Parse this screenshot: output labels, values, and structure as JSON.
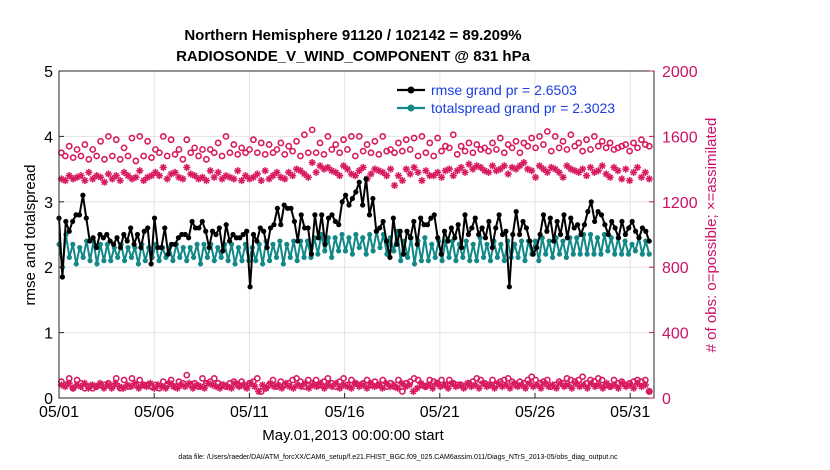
{
  "chart_data": {
    "type": "line",
    "title_line1": "Northern Hemisphere 91120 / 102142 = 89.209%",
    "title_line2": "RADIOSONDE_V_WIND_COMPONENT @ 831 hPa",
    "xlabel": "May.01,2013 00:00:00 start",
    "ylabel": "rmse and totalspread",
    "ylabel_right": "# of obs: o=possible; ×=assimilated",
    "footnote": "data file: /Users/raeder/DAI/ATM_forcXX/CAM6_setup/f.e21.FHIST_BGC.f09_025.CAM6assim.011/Diags_NTrS_2013-05/obs_diag_output.nc",
    "xlim": [
      0,
      31.25
    ],
    "ylim": [
      0,
      5
    ],
    "ylim_right": [
      0,
      2000
    ],
    "x_ticks": [
      {
        "value": 0,
        "label": "05/01"
      },
      {
        "value": 5,
        "label": "05/06"
      },
      {
        "value": 10,
        "label": "05/11"
      },
      {
        "value": 15,
        "label": "05/16"
      },
      {
        "value": 20,
        "label": "05/21"
      },
      {
        "value": 25,
        "label": "05/26"
      },
      {
        "value": 30,
        "label": "05/31"
      }
    ],
    "y_ticks": [
      0,
      1,
      2,
      3,
      4,
      5
    ],
    "y_ticks_right": [
      0,
      400,
      800,
      1200,
      1600,
      2000
    ],
    "grid": true,
    "colors": {
      "rmse": "#000000",
      "spread": "#128888",
      "obs": "#d81b60"
    },
    "legend_position": "top-right",
    "series": [
      {
        "name": "rmse grand pr = 2.6503",
        "key": "rmse",
        "values": [
          2.75,
          1.85,
          2.7,
          2.55,
          2.7,
          2.8,
          2.8,
          3.1,
          2.75,
          2.4,
          2.45,
          2.3,
          2.5,
          2.45,
          2.5,
          2.4,
          2.35,
          2.45,
          2.3,
          2.5,
          2.4,
          2.6,
          2.35,
          2.5,
          2.3,
          2.55,
          2.6,
          2.05,
          2.75,
          2.3,
          2.3,
          2.6,
          2.2,
          2.35,
          2.35,
          2.45,
          2.5,
          2.5,
          2.45,
          2.7,
          2.6,
          2.6,
          2.7,
          2.55,
          2.3,
          2.55,
          2.5,
          2.6,
          2.25,
          2.65,
          2.4,
          2.5,
          2.45,
          2.45,
          2.5,
          2.55,
          1.7,
          2.5,
          2.4,
          2.6,
          2.55,
          2.3,
          2.6,
          2.65,
          2.9,
          2.65,
          2.95,
          2.9,
          2.9,
          2.7,
          2.4,
          2.8,
          2.6,
          2.6,
          2.2,
          2.8,
          2.45,
          2.8,
          2.35,
          2.75,
          2.8,
          2.7,
          2.65,
          3.0,
          3.1,
          2.95,
          3.05,
          3.15,
          3.3,
          2.95,
          3.35,
          2.8,
          3.05,
          2.55,
          2.6,
          2.7,
          2.4,
          2.15,
          2.75,
          2.35,
          2.55,
          2.2,
          2.55,
          2.45,
          2.7,
          2.35,
          2.75,
          2.65,
          2.65,
          2.75,
          2.8,
          2.45,
          2.2,
          2.55,
          2.4,
          2.6,
          2.45,
          2.65,
          2.3,
          2.8,
          2.5,
          2.6,
          2.75,
          2.5,
          2.6,
          2.45,
          2.7,
          2.3,
          2.6,
          2.8,
          2.5,
          2.55,
          1.7,
          2.5,
          2.85,
          2.5,
          2.7,
          2.6,
          2.4,
          2.2,
          2.3,
          2.5,
          2.8,
          2.55,
          2.75,
          2.4,
          2.7,
          2.5,
          2.8,
          2.45,
          2.75,
          2.6,
          2.65,
          2.5,
          2.65,
          2.85,
          3.0,
          2.7,
          2.85,
          2.8,
          2.65,
          2.5,
          2.7,
          2.6,
          2.45,
          2.7,
          2.5,
          2.6,
          2.7,
          2.55,
          2.45,
          2.6,
          2.55,
          2.4
        ]
      },
      {
        "name": "totalspread grand pr = 2.3023",
        "key": "spread",
        "values": [
          2.35,
          2.0,
          2.5,
          2.15,
          2.35,
          2.05,
          2.3,
          2.15,
          2.4,
          2.1,
          2.4,
          2.05,
          2.35,
          2.1,
          2.35,
          2.1,
          2.3,
          2.15,
          2.35,
          2.1,
          2.3,
          2.15,
          2.3,
          2.05,
          2.35,
          2.1,
          2.3,
          2.15,
          2.35,
          2.1,
          2.3,
          2.15,
          2.3,
          2.1,
          2.35,
          2.15,
          2.3,
          2.1,
          2.3,
          2.15,
          2.35,
          2.05,
          2.35,
          2.15,
          2.35,
          2.1,
          2.3,
          2.15,
          2.35,
          2.1,
          2.35,
          2.05,
          2.3,
          2.1,
          2.35,
          2.1,
          2.3,
          2.1,
          2.35,
          2.05,
          2.4,
          2.1,
          2.35,
          2.15,
          2.4,
          2.05,
          2.35,
          2.15,
          2.4,
          2.1,
          2.4,
          2.15,
          2.4,
          2.15,
          2.45,
          2.2,
          2.5,
          2.25,
          2.45,
          2.15,
          2.45,
          2.25,
          2.5,
          2.25,
          2.45,
          2.2,
          2.5,
          2.3,
          2.45,
          2.2,
          2.5,
          2.25,
          2.55,
          2.3,
          2.5,
          2.2,
          2.45,
          2.25,
          2.55,
          2.1,
          2.4,
          2.15,
          2.45,
          2.05,
          2.4,
          2.1,
          2.45,
          2.1,
          2.35,
          2.15,
          2.4,
          2.1,
          2.4,
          2.15,
          2.4,
          2.1,
          2.35,
          2.15,
          2.4,
          2.1,
          2.35,
          2.1,
          2.45,
          2.15,
          2.35,
          2.1,
          2.4,
          2.15,
          2.35,
          2.1,
          2.4,
          2.15,
          2.35,
          2.15,
          2.4,
          2.1,
          2.4,
          2.2,
          2.4,
          2.1,
          2.45,
          2.2,
          2.4,
          2.15,
          2.45,
          2.2,
          2.4,
          2.15,
          2.45,
          2.2,
          2.45,
          2.2,
          2.5,
          2.2,
          2.5,
          2.2,
          2.45,
          2.2,
          2.5,
          2.25,
          2.45,
          2.2,
          2.45,
          2.2,
          2.4,
          2.2,
          2.35,
          2.25,
          2.45,
          2.2,
          2.4,
          2.2
        ]
      },
      {
        "name": "obs possible",
        "key": "possible",
        "axis": "right",
        "values": [
          1500,
          1480,
          1540,
          1470,
          1520,
          1480,
          1550,
          1460,
          1520,
          1480,
          1570,
          1460,
          1600,
          1480,
          1580,
          1460,
          1530,
          1480,
          1590,
          1450,
          1600,
          1480,
          1570,
          1470,
          1520,
          1500,
          1600,
          1480,
          1580,
          1490,
          1520,
          1460,
          1580,
          1500,
          1530,
          1480,
          1520,
          1460,
          1520,
          1500,
          1560,
          1480,
          1600,
          1500,
          1550,
          1490,
          1530,
          1500,
          1520,
          1580,
          1500,
          1560,
          1490,
          1550,
          1500,
          1520,
          1560,
          1490,
          1540,
          1510,
          1570,
          1480,
          1610,
          1500,
          1640,
          1500,
          1560,
          1490,
          1600,
          1520,
          1550,
          1500,
          1580,
          1520,
          1600,
          1480,
          1600,
          1510,
          1550,
          1500,
          1570,
          1490,
          1600,
          1510,
          1520,
          1500,
          1560,
          1510,
          1580,
          1520,
          1590,
          1480,
          1600,
          1500,
          1560,
          1480,
          1590,
          1510,
          1540,
          1530,
          1610,
          1490,
          1540,
          1510,
          1560,
          1500,
          1550,
          1520,
          1530,
          1510,
          1560,
          1520,
          1590,
          1500,
          1550,
          1530,
          1570,
          1500,
          1560,
          1540,
          1590,
          1530,
          1600,
          1550,
          1630,
          1510,
          1600,
          1530,
          1570,
          1520,
          1610,
          1540,
          1560,
          1510,
          1580,
          1520,
          1600,
          1540,
          1570,
          1530,
          1560,
          1520,
          1530,
          1540,
          1550,
          1510,
          1560,
          1530,
          1580,
          1550,
          1540
        ],
        "low_values": [
          100,
          80,
          120,
          60,
          110,
          90,
          60,
          70,
          60,
          70,
          80,
          80,
          90,
          70,
          120,
          60,
          110,
          70,
          120,
          80,
          110,
          80,
          80,
          70,
          80,
          60,
          100,
          80,
          110,
          70,
          100,
          90,
          140,
          80,
          90,
          70,
          120,
          90,
          100,
          120,
          90,
          80,
          70,
          90,
          100,
          80,
          100,
          70,
          90,
          100,
          120,
          40,
          60,
          80,
          110,
          70,
          100,
          80,
          90,
          110,
          120,
          100,
          70,
          110,
          90,
          110,
          80,
          100,
          120,
          90,
          70,
          100,
          120,
          80,
          110,
          90,
          80,
          90,
          110,
          80,
          100,
          80,
          110,
          70,
          90,
          70,
          110,
          40,
          90,
          100,
          120,
          110,
          80,
          70,
          110,
          100,
          90,
          110,
          80,
          110,
          90,
          80,
          80,
          70,
          90,
          100,
          120,
          110,
          90,
          80,
          110,
          80,
          100,
          110,
          120,
          100,
          80,
          100,
          90,
          110,
          130,
          110,
          90,
          100,
          110,
          70,
          80,
          100,
          90,
          120,
          110,
          100,
          110,
          130,
          90,
          110,
          100,
          120,
          110,
          80,
          70,
          110,
          90,
          100,
          80,
          90,
          100,
          110,
          100,
          110,
          40
        ]
      },
      {
        "name": "obs assimilated",
        "key": "assimilated",
        "axis": "right",
        "values": [
          1340,
          1330,
          1360,
          1340,
          1350,
          1360,
          1330,
          1380,
          1340,
          1360,
          1350,
          1320,
          1370,
          1340,
          1360,
          1330,
          1380,
          1360,
          1340,
          1350,
          1390,
          1330,
          1350,
          1360,
          1380,
          1360,
          1410,
          1340,
          1370,
          1380,
          1350,
          1340,
          1410,
          1370,
          1360,
          1340,
          1350,
          1330,
          1390,
          1350,
          1380,
          1340,
          1360,
          1350,
          1340,
          1390,
          1330,
          1360,
          1340,
          1350,
          1370,
          1330,
          1390,
          1340,
          1360,
          1380,
          1350,
          1340,
          1380,
          1360,
          1400,
          1390,
          1370,
          1350,
          1440,
          1380,
          1420,
          1400,
          1410,
          1390,
          1380,
          1360,
          1420,
          1400,
          1370,
          1360,
          1390,
          1410,
          1340,
          1370,
          1400,
          1390,
          1380,
          1360,
          1400,
          1300,
          1360,
          1330,
          1400,
          1370,
          1410,
          1380,
          1330,
          1390,
          1360,
          1360,
          1380,
          1350,
          1390,
          1400,
          1360,
          1390,
          1410,
          1380,
          1430,
          1400,
          1420,
          1410,
          1390,
          1380,
          1420,
          1390,
          1400,
          1420,
          1370,
          1410,
          1400,
          1420,
          1440,
          1400,
          1390,
          1350,
          1420,
          1400,
          1380,
          1410,
          1400,
          1380,
          1350,
          1420,
          1400,
          1390,
          1380,
          1400,
          1360,
          1410,
          1380,
          1390,
          1420,
          1370,
          1350,
          1410,
          1390,
          1340,
          1400,
          1330,
          1380,
          1410,
          1350,
          1380,
          1340
        ],
        "low_values": [
          80,
          70,
          90,
          60,
          80,
          70,
          90,
          60,
          80,
          70,
          90,
          60,
          80,
          60,
          90,
          70,
          60,
          80,
          70,
          90,
          60,
          80,
          70,
          90,
          60,
          80,
          70,
          60,
          90,
          70,
          60,
          80,
          70,
          90,
          60,
          80,
          70,
          60,
          90,
          80,
          70,
          60,
          80,
          70,
          60,
          90,
          70,
          80,
          60,
          90,
          70,
          40,
          80,
          60,
          90,
          70,
          80,
          60,
          90,
          70,
          60,
          80,
          70,
          90,
          60,
          80,
          70,
          90,
          60,
          80,
          70,
          90,
          60,
          80,
          70,
          60,
          90,
          70,
          80,
          60,
          90,
          70,
          80,
          60,
          90,
          70,
          80,
          60,
          90,
          70,
          80,
          40,
          60,
          90,
          70,
          80,
          60,
          90,
          70,
          80,
          60,
          90,
          70,
          80,
          60,
          90,
          70,
          80,
          60,
          90,
          70,
          80,
          60,
          90,
          70,
          80,
          60,
          90,
          70,
          80,
          60,
          90,
          70,
          80,
          60,
          90,
          70,
          80,
          60,
          90,
          70,
          80,
          60,
          90,
          70,
          80,
          60,
          90,
          70,
          80,
          60,
          90,
          70,
          80,
          60,
          90,
          70,
          80,
          60,
          90,
          70,
          80,
          40
        ]
      }
    ]
  }
}
